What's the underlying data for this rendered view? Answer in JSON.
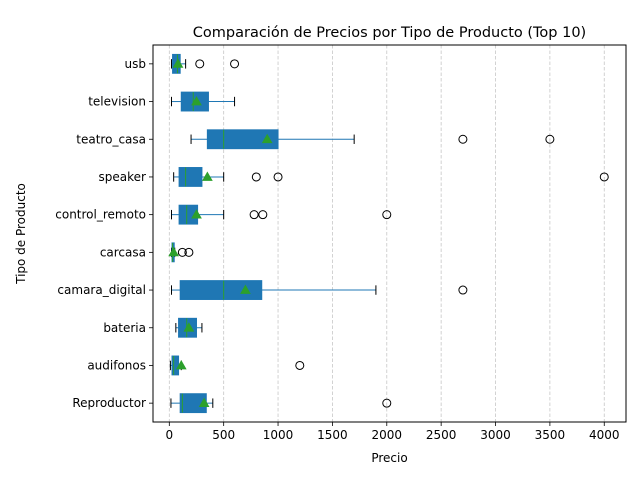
{
  "chart_data": {
    "type": "boxplot",
    "title": "Comparación de Precios por Tipo de Producto (Top 10)",
    "xlabel": "Precio",
    "ylabel": "Tipo de Producto",
    "xlim": [
      -150,
      4200
    ],
    "xticks": [
      0,
      500,
      1000,
      1500,
      2000,
      2500,
      3000,
      3500,
      4000
    ],
    "grid": "x-dashed",
    "orientation": "horizontal",
    "colors": {
      "box": "#1f77b4",
      "median": "#2ca02c",
      "mean_marker": "#2ca02c",
      "whisker": "#1f77b4",
      "flier_edge": "#000000"
    },
    "categories": [
      "Reproductor",
      "audifonos",
      "bateria",
      "camara_digital",
      "carcasa",
      "control_remoto",
      "speaker",
      "teatro_casa",
      "television",
      "usb"
    ],
    "boxes": [
      {
        "name": "Reproductor",
        "whislo": 15,
        "q1": 100,
        "med": 120,
        "q3": 340,
        "whishi": 400,
        "mean": 320,
        "fliers": [
          2000
        ]
      },
      {
        "name": "audifonos",
        "whislo": 10,
        "q1": 25,
        "med": 40,
        "q3": 85,
        "whishi": 110,
        "mean": 110,
        "fliers": [
          1200
        ]
      },
      {
        "name": "bateria",
        "whislo": 60,
        "q1": 85,
        "med": 160,
        "q3": 250,
        "whishi": 300,
        "mean": 180,
        "fliers": []
      },
      {
        "name": "camara_digital",
        "whislo": 20,
        "q1": 100,
        "med": 500,
        "q3": 850,
        "whishi": 1900,
        "mean": 700,
        "fliers": [
          2700
        ]
      },
      {
        "name": "carcasa",
        "whislo": 20,
        "q1": 25,
        "med": 30,
        "q3": 45,
        "whishi": 50,
        "mean": 40,
        "fliers": [
          120,
          180
        ]
      },
      {
        "name": "control_remoto",
        "whislo": 20,
        "q1": 90,
        "med": 160,
        "q3": 260,
        "whishi": 500,
        "mean": 250,
        "fliers": [
          780,
          860,
          2000
        ]
      },
      {
        "name": "speaker",
        "whislo": 40,
        "q1": 90,
        "med": 150,
        "q3": 300,
        "whishi": 500,
        "mean": 350,
        "fliers": [
          800,
          1000,
          4000
        ]
      },
      {
        "name": "teatro_casa",
        "whislo": 200,
        "q1": 350,
        "med": 500,
        "q3": 1000,
        "whishi": 1700,
        "mean": 900,
        "fliers": [
          2700,
          3500
        ]
      },
      {
        "name": "television",
        "whislo": 20,
        "q1": 110,
        "med": 220,
        "q3": 360,
        "whishi": 600,
        "mean": 250,
        "fliers": []
      },
      {
        "name": "usb",
        "whislo": 20,
        "q1": 30,
        "med": 75,
        "q3": 100,
        "whishi": 150,
        "mean": 80,
        "fliers": [
          280,
          600
        ]
      }
    ]
  }
}
